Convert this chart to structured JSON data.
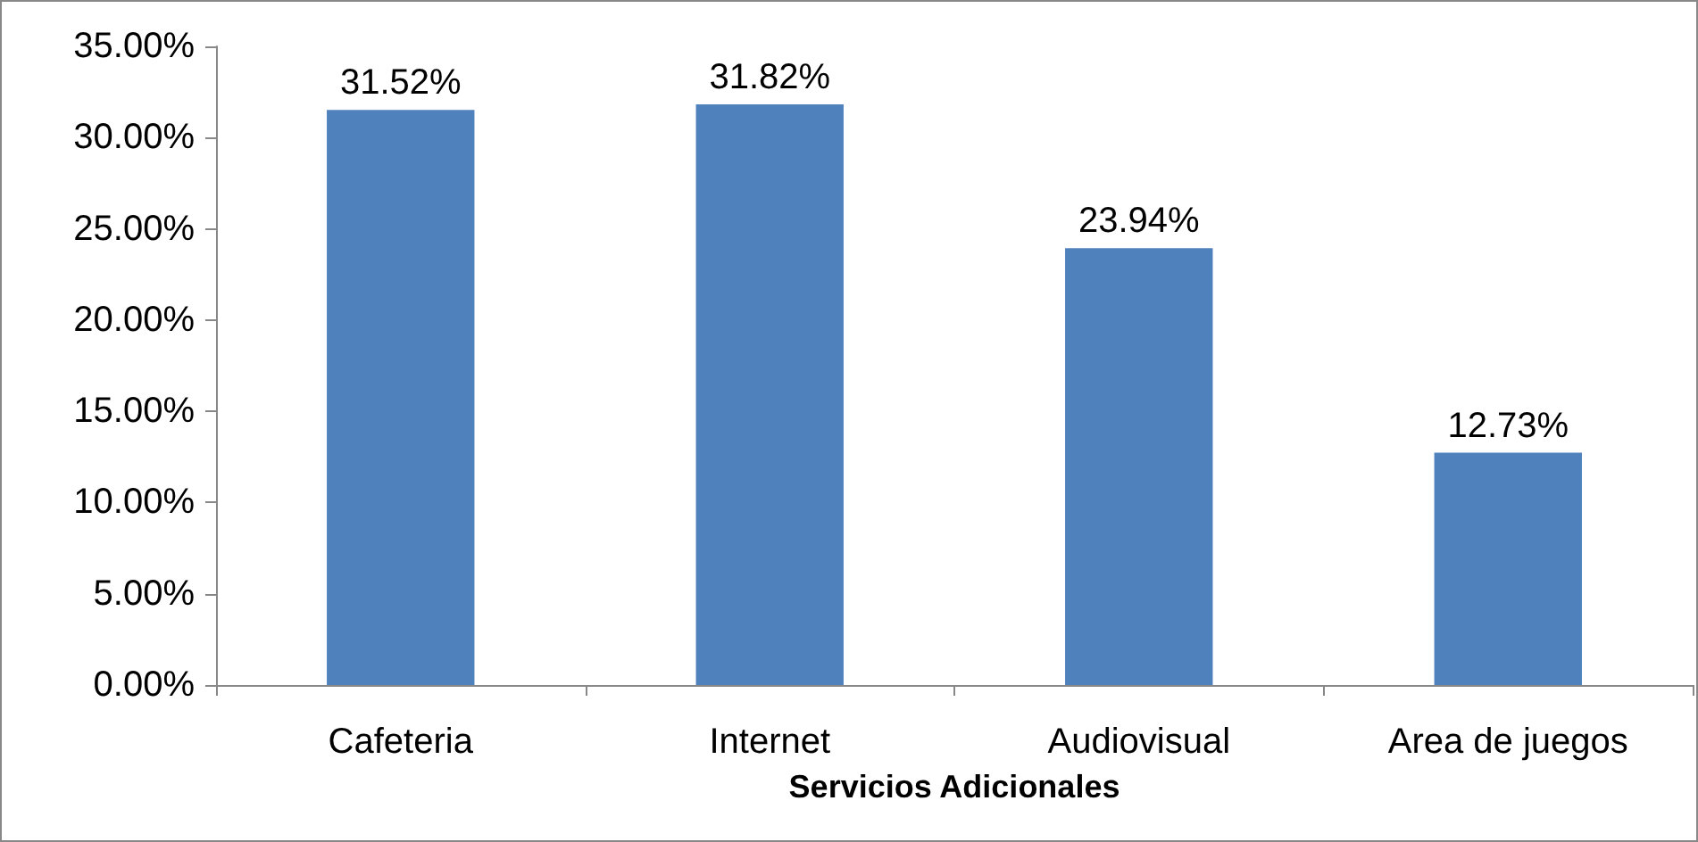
{
  "chart_data": {
    "type": "bar",
    "xlabel": "Servicios Adicionales",
    "categories": [
      "Cafeteria",
      "Internet",
      "Audiovisual",
      "Area de juegos"
    ],
    "values": [
      31.52,
      31.82,
      23.94,
      12.73
    ],
    "value_labels": [
      "31.52%",
      "31.82%",
      "23.94%",
      "12.73%"
    ],
    "color": "#4f81bd",
    "ylim": [
      0,
      35
    ],
    "yticks": [
      {
        "value": 0,
        "label": "0.00%"
      },
      {
        "value": 5,
        "label": "5.00%"
      },
      {
        "value": 10,
        "label": "10.00%"
      },
      {
        "value": 15,
        "label": "15.00%"
      },
      {
        "value": 20,
        "label": "20.00%"
      },
      {
        "value": 25,
        "label": "25.00%"
      },
      {
        "value": 30,
        "label": "30.00%"
      },
      {
        "value": 35,
        "label": "35.00%"
      }
    ],
    "grid": false
  }
}
